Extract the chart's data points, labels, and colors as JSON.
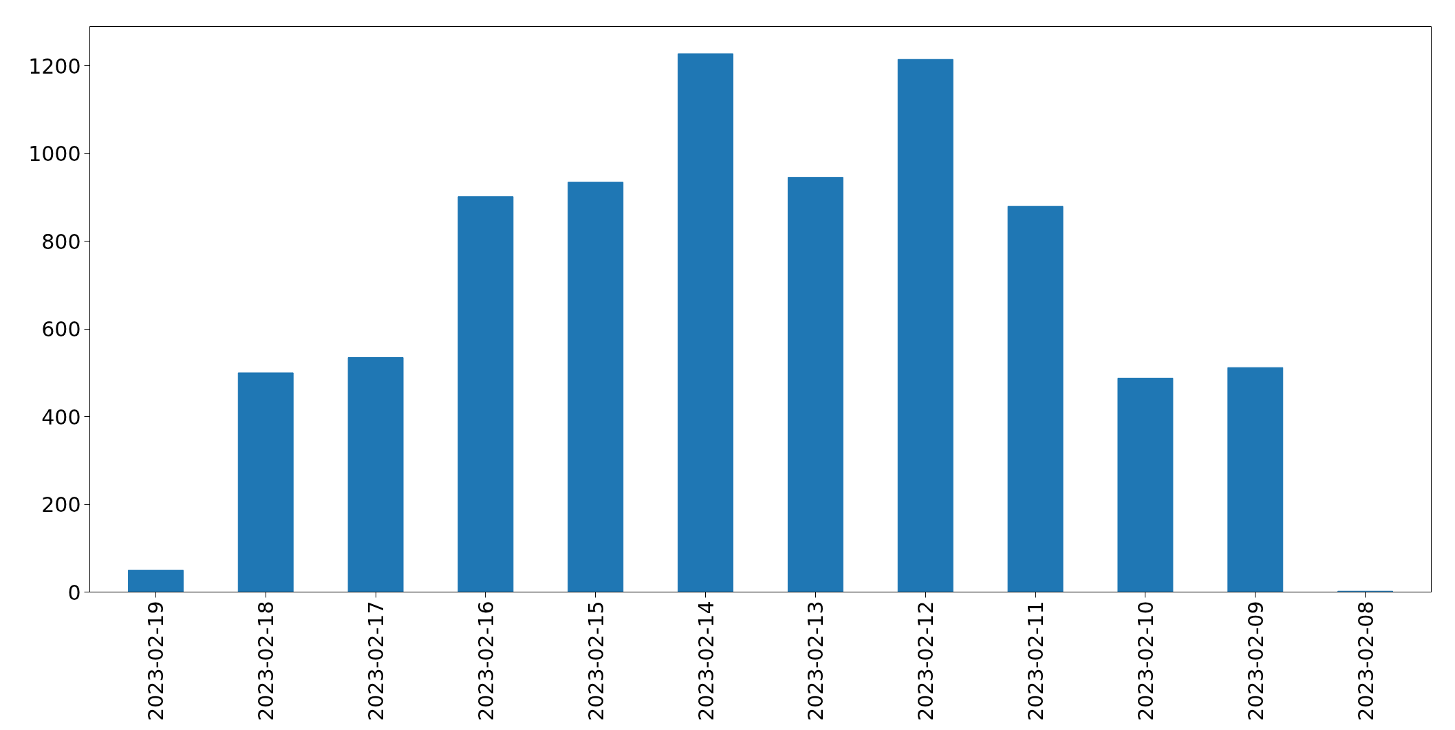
{
  "chart_data": {
    "type": "bar",
    "categories": [
      "2023-02-19",
      "2023-02-18",
      "2023-02-17",
      "2023-02-16",
      "2023-02-15",
      "2023-02-14",
      "2023-02-13",
      "2023-02-12",
      "2023-02-11",
      "2023-02-10",
      "2023-02-09",
      "2023-02-08"
    ],
    "values": [
      50,
      500,
      535,
      902,
      935,
      1228,
      946,
      1215,
      880,
      488,
      512,
      2
    ],
    "color": "#1f77b4",
    "ylim": [
      0,
      1290
    ],
    "yticks": [
      0,
      200,
      400,
      600,
      800,
      1000,
      1200
    ],
    "grid": false
  }
}
